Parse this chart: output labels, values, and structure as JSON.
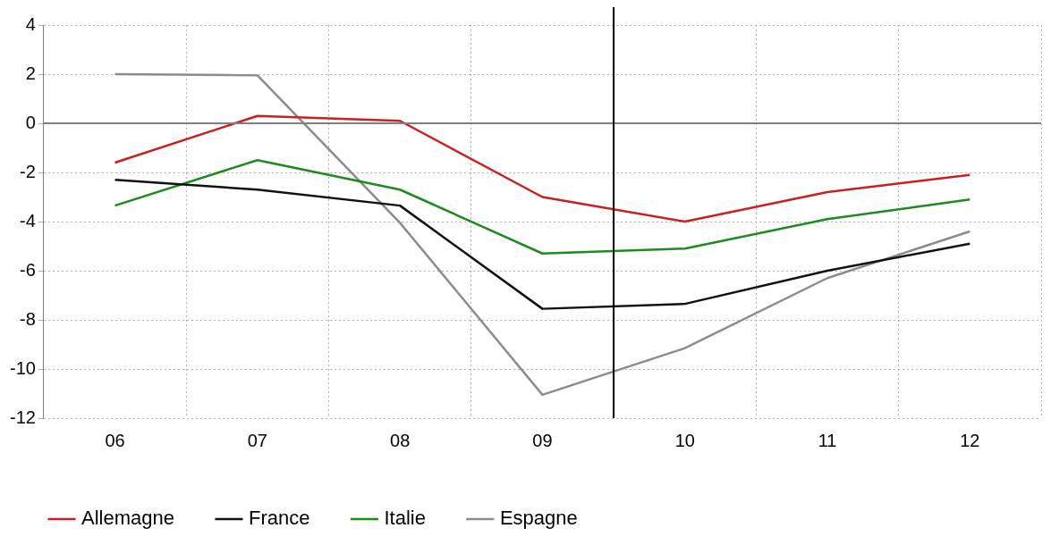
{
  "chart_data": {
    "type": "line",
    "x": [
      6,
      7,
      8,
      9,
      10,
      11,
      12
    ],
    "series": [
      {
        "name": "Allemagne",
        "color": "#cc1f1f",
        "values": [
          -1.6,
          0.3,
          0.1,
          -3.0,
          -4.0,
          -2.8,
          -2.1
        ]
      },
      {
        "name": "France",
        "color": "#111111",
        "values": [
          -2.3,
          -2.7,
          -3.35,
          -7.55,
          -7.35,
          -6.0,
          -4.9
        ]
      },
      {
        "name": "Italie",
        "color": "#1f8a1f",
        "values": [
          -3.35,
          -1.5,
          -2.7,
          -5.3,
          -5.1,
          -3.9,
          -3.1
        ]
      },
      {
        "name": "Espagne",
        "color": "#8c8c8c",
        "values": [
          2.0,
          1.95,
          -4.05,
          -11.05,
          -9.15,
          -6.3,
          -4.4
        ]
      }
    ],
    "xlim": [
      5.5,
      12.5
    ],
    "xticks": [
      {
        "value": 5.5,
        "label": null
      },
      {
        "value": 6,
        "label": "06"
      },
      {
        "value": 6.5,
        "label": null
      },
      {
        "value": 7,
        "label": "07"
      },
      {
        "value": 7.5,
        "label": null
      },
      {
        "value": 8,
        "label": "08"
      },
      {
        "value": 8.5,
        "label": null
      },
      {
        "value": 9,
        "label": "09"
      },
      {
        "value": 9.5,
        "label": null
      },
      {
        "value": 10,
        "label": "10"
      },
      {
        "value": 10.5,
        "label": null
      },
      {
        "value": 11,
        "label": "11"
      },
      {
        "value": 11.5,
        "label": null
      },
      {
        "value": 12,
        "label": "12"
      },
      {
        "value": 12.5,
        "label": null
      }
    ],
    "ylim": [
      -12,
      4
    ],
    "yticks": [
      -12,
      -10,
      -8,
      -6,
      -4,
      -2,
      0,
      2,
      4
    ],
    "grid": true,
    "legend": "bottom",
    "marker": "none",
    "line_style": "solid",
    "ref_lines": [
      {
        "axis": "y",
        "value": 0,
        "color": "#808080"
      },
      {
        "axis": "x",
        "value": 9.5,
        "color": "#000000"
      }
    ]
  }
}
